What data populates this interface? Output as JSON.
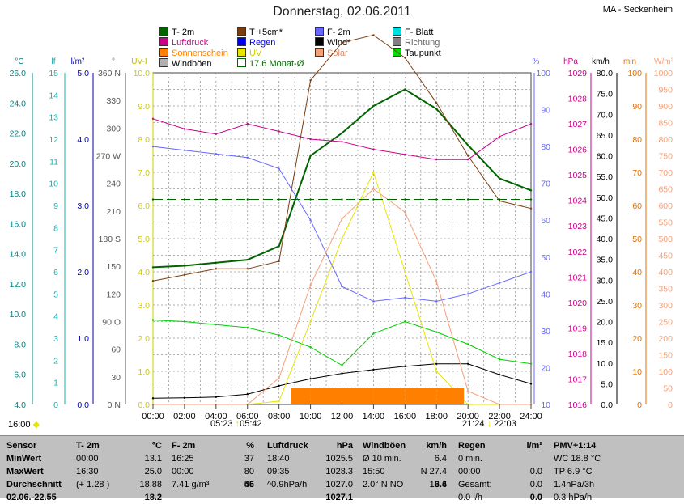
{
  "title": "Donnerstag, 02.06.2011",
  "location": "MA - Seckenheim",
  "legend": [
    {
      "label": "T- 2m",
      "color": "#006400"
    },
    {
      "label": "T +5cm*",
      "color": "#7a3d10"
    },
    {
      "label": "F- 2m",
      "color": "#6666ff"
    },
    {
      "label": "F- Blatt",
      "color": "#00dddd"
    },
    {
      "label": "Luftdruck",
      "color": "#cc0088"
    },
    {
      "label": "Regen",
      "color": "#0000ee"
    },
    {
      "label": "Wind*",
      "color": "#000000"
    },
    {
      "label": "Richtung",
      "color": "#808080"
    },
    {
      "label": "Sonnenschein",
      "color": "#ff8000"
    },
    {
      "label": "UV",
      "color": "#e6e600"
    },
    {
      "label": "Solar",
      "color": "#f4a07a"
    },
    {
      "label": "Taupunkt",
      "color": "#00dd00"
    },
    {
      "label": "Windböen",
      "color": "#b0b0b0"
    },
    {
      "label": "17.6 Monat-Ø",
      "color": "#006400"
    }
  ],
  "axis_units": {
    "temp": "°C",
    "leaf": "lf",
    "rain": "l/m²",
    "dir": "°",
    "uv": "UV-I",
    "humidity": "%",
    "pressure": "hPa",
    "wind": "km/h",
    "sunshine": "min",
    "solar": "W/m²"
  },
  "axis_ticks": {
    "temp": [
      "26.0",
      "24.0",
      "22.0",
      "20.0",
      "18.0",
      "16.0",
      "14.0",
      "12.0",
      "10.0",
      "8.0",
      "6.0",
      "4.0"
    ],
    "leaf": [
      "15",
      "14",
      "13",
      "12",
      "11",
      "10",
      "9",
      "8",
      "7",
      "6",
      "5",
      "4",
      "3",
      "2",
      "1",
      "0"
    ],
    "rain": [
      "5.0",
      "4.0",
      "3.0",
      "2.0",
      "1.0",
      "0.0"
    ],
    "dir": [
      "360 N",
      "330",
      "300",
      "270 W",
      "240",
      "210",
      "180 S",
      "150",
      "120",
      "90 O",
      "60",
      "30",
      "0 N"
    ],
    "uv": [
      "10.0",
      "9.0",
      "8.0",
      "7.0",
      "6.0",
      "5.0",
      "4.0",
      "3.0",
      "2.0",
      "1.0",
      "0.0"
    ],
    "humidity": [
      "100",
      "90",
      "80",
      "70",
      "60",
      "50",
      "40",
      "30",
      "20",
      "10"
    ],
    "pressure": [
      "1029",
      "1028",
      "1027",
      "1026",
      "1025",
      "1024",
      "1023",
      "1022",
      "1021",
      "1020",
      "1019",
      "1018",
      "1017",
      "1016"
    ],
    "wind": [
      "80.0",
      "75.0",
      "70.0",
      "65.0",
      "60.0",
      "55.0",
      "50.0",
      "45.0",
      "40.0",
      "35.0",
      "30.0",
      "25.0",
      "20.0",
      "15.0",
      "10.0",
      "5.0",
      "0.0"
    ],
    "sunshine": [
      "100",
      "90",
      "80",
      "70",
      "60",
      "50",
      "40",
      "30",
      "20",
      "10",
      "0"
    ],
    "solar": [
      "1000",
      "950",
      "900",
      "850",
      "800",
      "750",
      "700",
      "650",
      "600",
      "550",
      "500",
      "450",
      "400",
      "350",
      "300",
      "250",
      "200",
      "150",
      "100",
      "50",
      "0"
    ]
  },
  "x_ticks": [
    "00:00",
    "02:00",
    "04:00",
    "06:00",
    "08:00",
    "10:00",
    "12:00",
    "14:00",
    "16:00",
    "18:00",
    "20:00",
    "22:00",
    "24:00"
  ],
  "sun": {
    "left_time": "16:00",
    "sunrise": "05:23",
    "sunrise2": "05:42",
    "sunset": "21:24",
    "sunset2": "22:03"
  },
  "chart_data": {
    "type": "line",
    "x": [
      "00:00",
      "02:00",
      "04:00",
      "06:00",
      "08:00",
      "10:00",
      "12:00",
      "14:00",
      "16:00",
      "18:00",
      "20:00",
      "22:00",
      "24:00"
    ],
    "series": [
      {
        "name": "T- 2m",
        "values": [
          13.1,
          13.2,
          13.4,
          13.6,
          14.5,
          20.5,
          22.0,
          23.8,
          24.9,
          23.6,
          21.2,
          19.0,
          18.2
        ]
      },
      {
        "name": "T +5cm*",
        "values": [
          12.2,
          12.6,
          13.0,
          13.0,
          13.5,
          25.5,
          28.0,
          28.5,
          27.0,
          24.0,
          20.5,
          17.5,
          17.0
        ]
      },
      {
        "name": "F- 2m",
        "values": [
          80,
          79,
          78,
          77,
          74,
          60,
          42,
          38,
          39,
          38,
          40,
          43,
          46
        ]
      },
      {
        "name": "Luftdruck",
        "values": [
          1027.2,
          1026.8,
          1026.6,
          1027.0,
          1026.7,
          1026.4,
          1026.3,
          1026.0,
          1025.8,
          1025.6,
          1025.6,
          1026.5,
          1027.0
        ]
      },
      {
        "name": "Taupunkt",
        "values": [
          9.6,
          9.5,
          9.3,
          9.1,
          8.6,
          7.8,
          6.6,
          8.7,
          9.5,
          8.8,
          8.0,
          7.0,
          6.7
        ]
      },
      {
        "name": "Wind*",
        "values": [
          1.5,
          1.6,
          1.8,
          2.5,
          4.5,
          6.2,
          7.5,
          8.4,
          9.2,
          9.8,
          9.8,
          7.2,
          5.0
        ]
      },
      {
        "name": "UV",
        "values": [
          0,
          0,
          0,
          0,
          0.1,
          2.5,
          5.0,
          7.0,
          4.0,
          1.0,
          0,
          0,
          0
        ]
      },
      {
        "name": "Solar",
        "values": [
          0,
          0,
          0,
          0,
          80,
          360,
          560,
          650,
          580,
          370,
          40,
          0,
          0
        ]
      },
      {
        "name": "Sonnenschein",
        "values": [
          0,
          0,
          0,
          0,
          5,
          5,
          5,
          5,
          5,
          5,
          2,
          0,
          0
        ]
      },
      {
        "name": "17.6 Monat-Ø",
        "values": [
          17.6,
          17.6,
          17.6,
          17.6,
          17.6,
          17.6,
          17.6,
          17.6,
          17.6,
          17.6,
          17.6,
          17.6,
          17.6
        ]
      }
    ]
  },
  "stats": {
    "sensor": {
      "header": "Sensor",
      "rows": [
        "MinWert",
        "MaxWert",
        "Durchschnitt",
        "02.06.-22.55"
      ]
    },
    "temp": {
      "header": "T- 2m",
      "unit": "°C",
      "rows": [
        [
          "00:00",
          "13.1"
        ],
        [
          "16:30",
          "25.0"
        ],
        [
          "(+ 1.28 )",
          "18.88"
        ],
        [
          "",
          "18.2"
        ]
      ]
    },
    "humidity": {
      "header": "F- 2m",
      "unit": "%",
      "rows": [
        [
          "16:25",
          "37"
        ],
        [
          "00:00",
          "80"
        ],
        [
          "",
          "55"
        ],
        [
          "7.41 g/m³",
          "46"
        ]
      ]
    },
    "pressure": {
      "header": "Luftdruck",
      "unit": "hPa",
      "rows": [
        [
          "18:40",
          "1025.5"
        ],
        [
          "09:35",
          "1028.3"
        ],
        [
          "^0.9hPa/h",
          "1027.0"
        ],
        [
          "",
          "1027.1"
        ]
      ]
    },
    "gust": {
      "header": "Windböen",
      "unit": "km/h",
      "rows": [
        [
          "Ø 10 min.",
          "6.4"
        ],
        [
          "15:50",
          "N 27.4"
        ],
        [
          "",
          "13.6"
        ],
        [
          "2.0° N NO",
          "6.4"
        ]
      ]
    },
    "rain": {
      "header": "Regen",
      "unit": "l/m²",
      "rows": [
        [
          "0 min.",
          ""
        ],
        [
          "00:00",
          "0.0"
        ],
        [
          "Gesamt:",
          "0.0"
        ],
        [
          "0.0 l/h",
          "0.0"
        ]
      ]
    },
    "pmv": {
      "header": "PMV+1:14",
      "rows": [
        "WC 18.8 °C",
        "TP 6.9 °C",
        "1.4hPa/3h",
        "0.3 hPa/h"
      ]
    }
  }
}
